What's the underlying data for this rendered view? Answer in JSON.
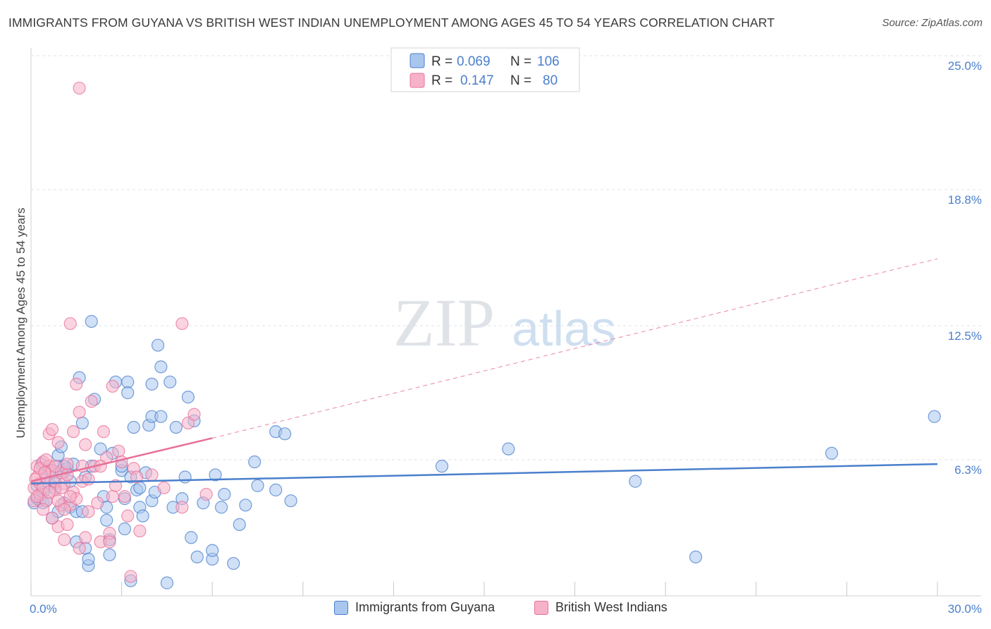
{
  "title": "IMMIGRANTS FROM GUYANA VS BRITISH WEST INDIAN UNEMPLOYMENT AMONG AGES 45 TO 54 YEARS CORRELATION CHART",
  "source": "Source: ZipAtlas.com",
  "watermark": {
    "zip": "ZIP",
    "atlas": "atlas"
  },
  "colors": {
    "blue": "#4a7fcc",
    "blue_fill": "#a9c6ee",
    "pink": "#e8709a",
    "pink_fill": "#f6b3c8",
    "grid": "#dde3ea"
  },
  "legend": {
    "items": [
      {
        "r_label": "R =",
        "r_value": "0.069",
        "n_label": "N =",
        "n_value": "106"
      },
      {
        "r_label": "R =",
        "r_value": "0.147",
        "n_label": "N =",
        "n_value": "80"
      }
    ]
  },
  "bottom_legend": [
    "Immigrants from Guyana",
    "British West Indians"
  ],
  "chart_data": {
    "type": "scatter",
    "title": "IMMIGRANTS FROM GUYANA VS BRITISH WEST INDIAN UNEMPLOYMENT AMONG AGES 45 TO 54 YEARS CORRELATION CHART",
    "xlabel": "",
    "ylabel": "Unemployment Among Ages 45 to 54 years",
    "xlim": [
      0,
      30
    ],
    "ylim": [
      0,
      25
    ],
    "x_tick_labels": [
      "0.0%",
      "30.0%"
    ],
    "y_ticks": [
      6.3,
      12.5,
      18.8,
      25.0
    ],
    "y_tick_labels": [
      "6.3%",
      "12.5%",
      "18.8%",
      "25.0%"
    ],
    "grid": true,
    "legend_position": "top-center",
    "series": [
      {
        "name": "Immigrants from Guyana",
        "color": "#4a7fcc",
        "trend": {
          "x": [
            0,
            30
          ],
          "y": [
            5.2,
            6.1
          ],
          "style": "solid"
        },
        "points": [
          [
            0.1,
            4.3
          ],
          [
            0.2,
            4.5
          ],
          [
            0.2,
            5.1
          ],
          [
            0.3,
            4.6
          ],
          [
            0.3,
            4.4
          ],
          [
            0.4,
            4.3
          ],
          [
            0.4,
            4.8
          ],
          [
            0.5,
            5.5
          ],
          [
            0.5,
            4.4
          ],
          [
            0.6,
            5.8
          ],
          [
            0.6,
            5.2
          ],
          [
            0.7,
            5.7
          ],
          [
            0.7,
            3.6
          ],
          [
            0.8,
            5.2
          ],
          [
            0.8,
            5.0
          ],
          [
            0.9,
            6.0
          ],
          [
            0.9,
            6.5
          ],
          [
            1.0,
            6.9
          ],
          [
            1.0,
            5.8
          ],
          [
            1.1,
            4.3
          ],
          [
            1.2,
            5.9
          ],
          [
            1.3,
            4.1
          ],
          [
            1.3,
            5.3
          ],
          [
            1.4,
            6.1
          ],
          [
            1.5,
            3.9
          ],
          [
            1.5,
            2.5
          ],
          [
            1.6,
            10.1
          ],
          [
            1.7,
            3.9
          ],
          [
            1.7,
            8.0
          ],
          [
            1.8,
            2.2
          ],
          [
            1.8,
            5.5
          ],
          [
            1.9,
            1.4
          ],
          [
            1.9,
            1.7
          ],
          [
            2.0,
            6.0
          ],
          [
            2.0,
            12.7
          ],
          [
            2.1,
            9.1
          ],
          [
            2.3,
            6.8
          ],
          [
            2.4,
            4.6
          ],
          [
            2.5,
            3.5
          ],
          [
            2.5,
            4.1
          ],
          [
            2.6,
            1.9
          ],
          [
            2.6,
            2.6
          ],
          [
            2.8,
            9.9
          ],
          [
            3.0,
            5.8
          ],
          [
            3.0,
            6.0
          ],
          [
            3.1,
            3.1
          ],
          [
            3.1,
            4.5
          ],
          [
            3.2,
            9.9
          ],
          [
            3.2,
            9.4
          ],
          [
            3.3,
            5.5
          ],
          [
            3.3,
            0.7
          ],
          [
            3.4,
            7.8
          ],
          [
            3.5,
            4.9
          ],
          [
            3.6,
            5.0
          ],
          [
            3.6,
            4.1
          ],
          [
            3.7,
            3.7
          ],
          [
            3.8,
            5.7
          ],
          [
            3.9,
            7.9
          ],
          [
            4.0,
            8.3
          ],
          [
            4.0,
            9.8
          ],
          [
            4.0,
            4.4
          ],
          [
            4.1,
            4.8
          ],
          [
            4.2,
            11.6
          ],
          [
            4.3,
            8.3
          ],
          [
            4.3,
            10.6
          ],
          [
            4.5,
            0.6
          ],
          [
            4.6,
            9.9
          ],
          [
            4.7,
            4.1
          ],
          [
            4.8,
            7.8
          ],
          [
            5.0,
            4.5
          ],
          [
            5.1,
            5.5
          ],
          [
            5.2,
            9.2
          ],
          [
            5.3,
            2.7
          ],
          [
            5.4,
            8.1
          ],
          [
            5.5,
            1.8
          ],
          [
            5.7,
            4.3
          ],
          [
            6.0,
            1.7
          ],
          [
            6.0,
            2.1
          ],
          [
            6.1,
            5.6
          ],
          [
            6.3,
            4.1
          ],
          [
            6.4,
            4.7
          ],
          [
            6.7,
            1.5
          ],
          [
            6.9,
            3.3
          ],
          [
            7.1,
            4.2
          ],
          [
            7.4,
            6.2
          ],
          [
            7.5,
            5.1
          ],
          [
            8.1,
            7.6
          ],
          [
            8.1,
            4.9
          ],
          [
            8.4,
            7.5
          ],
          [
            8.6,
            4.4
          ],
          [
            13.6,
            6.0
          ],
          [
            15.8,
            6.8
          ],
          [
            20.0,
            5.3
          ],
          [
            26.5,
            6.6
          ],
          [
            29.9,
            8.3
          ],
          [
            22.0,
            1.8
          ],
          [
            0.35,
            6.1
          ],
          [
            0.9,
            3.9
          ],
          [
            1.1,
            6.0
          ],
          [
            2.7,
            6.6
          ]
        ]
      },
      {
        "name": "British West Indians",
        "color": "#e8709a",
        "trend": {
          "x": [
            0,
            6.0
          ],
          "y": [
            5.3,
            7.3
          ],
          "style": "solid",
          "extension": {
            "x": [
              6.0,
              30
            ],
            "y": [
              7.3,
              15.6
            ],
            "style": "dashed"
          }
        },
        "points": [
          [
            0.1,
            5.0
          ],
          [
            0.1,
            4.4
          ],
          [
            0.2,
            6.0
          ],
          [
            0.2,
            5.5
          ],
          [
            0.3,
            4.7
          ],
          [
            0.3,
            5.2
          ],
          [
            0.4,
            6.2
          ],
          [
            0.4,
            5.0
          ],
          [
            0.5,
            4.4
          ],
          [
            0.5,
            5.5
          ],
          [
            0.6,
            6.0
          ],
          [
            0.6,
            7.5
          ],
          [
            0.7,
            7.7
          ],
          [
            0.7,
            5.8
          ],
          [
            0.8,
            4.9
          ],
          [
            0.8,
            5.3
          ],
          [
            0.9,
            3.2
          ],
          [
            0.9,
            7.1
          ],
          [
            1.0,
            5.7
          ],
          [
            1.0,
            4.2
          ],
          [
            1.1,
            2.6
          ],
          [
            1.1,
            5.2
          ],
          [
            1.2,
            6.1
          ],
          [
            1.2,
            3.3
          ],
          [
            1.3,
            12.6
          ],
          [
            1.3,
            4.2
          ],
          [
            1.4,
            7.6
          ],
          [
            1.4,
            4.8
          ],
          [
            1.5,
            4.5
          ],
          [
            1.5,
            9.8
          ],
          [
            1.6,
            8.5
          ],
          [
            1.6,
            2.2
          ],
          [
            1.7,
            5.3
          ],
          [
            1.7,
            6.0
          ],
          [
            1.8,
            7.0
          ],
          [
            1.8,
            2.7
          ],
          [
            1.9,
            5.4
          ],
          [
            2.0,
            9.0
          ],
          [
            2.1,
            6.0
          ],
          [
            2.2,
            4.3
          ],
          [
            2.3,
            2.5
          ],
          [
            2.4,
            7.6
          ],
          [
            2.5,
            6.4
          ],
          [
            2.6,
            2.9
          ],
          [
            2.6,
            2.5
          ],
          [
            2.7,
            9.7
          ],
          [
            2.8,
            5.1
          ],
          [
            2.9,
            6.7
          ],
          [
            3.0,
            6.2
          ],
          [
            3.1,
            4.6
          ],
          [
            3.2,
            3.7
          ],
          [
            3.3,
            0.9
          ],
          [
            3.4,
            5.9
          ],
          [
            3.5,
            5.5
          ],
          [
            3.6,
            3.0
          ],
          [
            4.0,
            5.6
          ],
          [
            4.4,
            5.0
          ],
          [
            5.0,
            4.1
          ],
          [
            5.0,
            12.6
          ],
          [
            5.2,
            8.0
          ],
          [
            5.4,
            8.4
          ],
          [
            5.8,
            4.7
          ],
          [
            1.6,
            23.5
          ],
          [
            0.2,
            4.6
          ],
          [
            0.3,
            5.9
          ],
          [
            0.4,
            4.0
          ],
          [
            0.5,
            6.3
          ],
          [
            0.6,
            4.8
          ],
          [
            0.7,
            3.6
          ],
          [
            0.8,
            6.0
          ],
          [
            0.9,
            4.4
          ],
          [
            1.0,
            5.0
          ],
          [
            1.1,
            4.0
          ],
          [
            1.2,
            5.6
          ],
          [
            1.3,
            4.6
          ],
          [
            1.9,
            3.9
          ],
          [
            2.3,
            6.0
          ],
          [
            2.7,
            4.6
          ],
          [
            0.15,
            5.4
          ],
          [
            0.45,
            5.7
          ]
        ]
      }
    ]
  }
}
